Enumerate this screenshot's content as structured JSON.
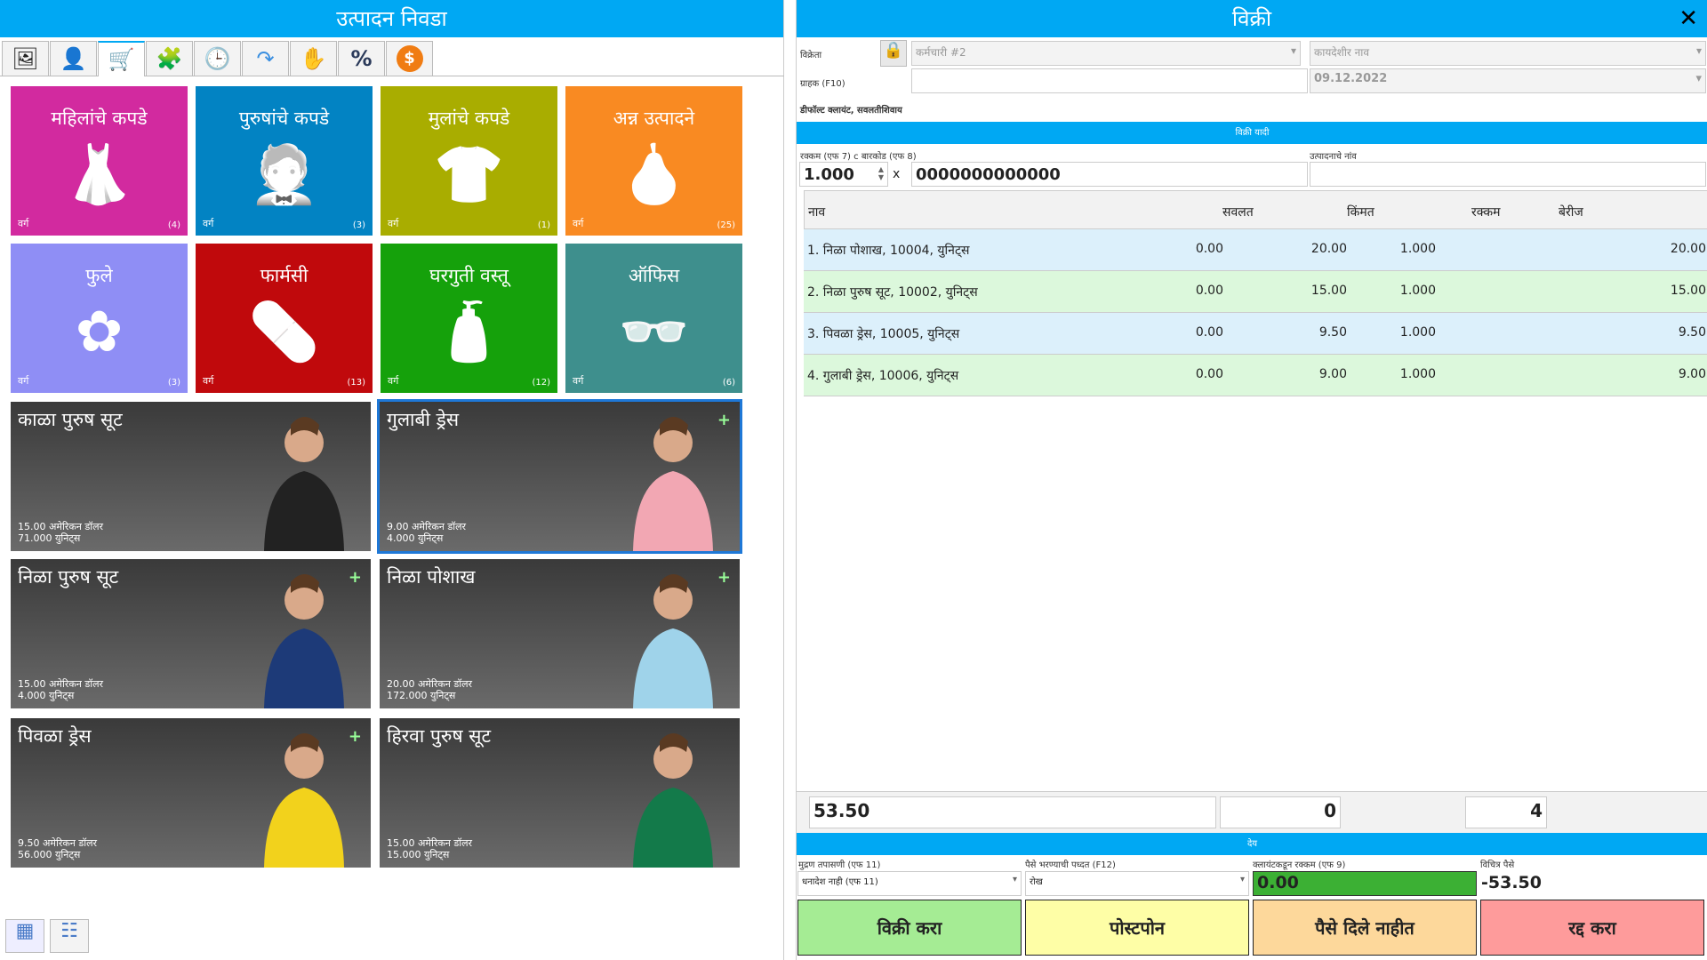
{
  "left": {
    "title": "उत्पादन निवडा",
    "toolbar": [
      {
        "icon": "image-icon",
        "glyph": "🖼"
      },
      {
        "icon": "user-icon",
        "glyph": "👤"
      },
      {
        "icon": "cart-icon",
        "glyph": "🛒"
      },
      {
        "icon": "puzzle-icon",
        "glyph": "🧩"
      },
      {
        "icon": "clock-icon",
        "glyph": "🕒"
      },
      {
        "icon": "redo-arrow-icon",
        "glyph": "↷"
      },
      {
        "icon": "hand-icon",
        "glyph": "✋"
      },
      {
        "icon": "percent-icon",
        "glyph": "%"
      },
      {
        "icon": "dollar-icon",
        "glyph": "$"
      }
    ],
    "categories": [
      {
        "name": "महिलांचे कपडे",
        "label": "वर्ग",
        "count": "(4)",
        "color": "#d22a9f",
        "icon": "dress-icon",
        "glyph": "👗"
      },
      {
        "name": "पुरुषांचे कपडे",
        "label": "वर्ग",
        "count": "(3)",
        "color": "#0283c3",
        "icon": "tuxedo-icon",
        "glyph": "🤵"
      },
      {
        "name": "मुलांचे कपडे",
        "label": "वर्ग",
        "count": "(1)",
        "color": "#a9ad00",
        "icon": "baby-clothes-icon",
        "glyph": "👕"
      },
      {
        "name": "अन्न उत्पादने",
        "label": "वर्ग",
        "count": "(25)",
        "color": "#f98a22",
        "icon": "pear-icon",
        "glyph": "🍐"
      },
      {
        "name": "फुले",
        "label": "वर्ग",
        "count": "(3)",
        "color": "#8f8ef5",
        "icon": "flower-icon",
        "glyph": "✿"
      },
      {
        "name": "फार्मसी",
        "label": "वर्ग",
        "count": "(13)",
        "color": "#c0090c",
        "icon": "pills-icon",
        "glyph": "💊"
      },
      {
        "name": "घरगुती वस्तू",
        "label": "वर्ग",
        "count": "(12)",
        "color": "#15a10b",
        "icon": "cleaning-bottles-icon",
        "glyph": "🧴"
      },
      {
        "name": "ऑफिस",
        "label": "वर्ग",
        "count": "(6)",
        "color": "#3e8f8d",
        "icon": "glasses-icon",
        "glyph": "👓"
      }
    ],
    "products": [
      {
        "name": "काळा पुरुष सूट",
        "price": "15.00 अमेरिकन डॉलर",
        "stock": "71.000 युनिट्स",
        "plus": "",
        "color": "#222"
      },
      {
        "name": "गुलाबी ड्रेस",
        "price": "9.00 अमेरिकन डॉलर",
        "stock": "4.000 युनिट्स",
        "plus": "+",
        "color": "#f2a7b3"
      },
      {
        "name": "निळा पुरुष सूट",
        "price": "15.00 अमेरिकन डॉलर",
        "stock": "4.000 युनिट्स",
        "plus": "+",
        "color": "#1d3a78"
      },
      {
        "name": "निळा पोशाख",
        "price": "20.00 अमेरिकन डॉलर",
        "stock": "172.000 युनिट्स",
        "plus": "+",
        "color": "#9fd3ea"
      },
      {
        "name": "पिवळा ड्रेस",
        "price": "9.50 अमेरिकन डॉलर",
        "stock": "56.000 युनिट्स",
        "plus": "+",
        "color": "#f2d21c"
      },
      {
        "name": "हिरवा पुरुष सूट",
        "price": "15.00 अमेरिकन डॉलर",
        "stock": "15.000 युनिट्स",
        "plus": "",
        "color": "#137a4a"
      }
    ]
  },
  "right": {
    "title": "विक्री",
    "close": "✕",
    "seller_label": "विक्रेता",
    "employee": "कर्मचारी #2",
    "legal_name": "कायदेशीर नाव",
    "customer_label": "ग्राहक (F10)",
    "customer": "",
    "date": "09.12.2022",
    "default_client": "डीफॉल्ट क्लायंट, सवलतीशिवाय",
    "list_header": "विक्री यादी",
    "qty_label": "रक्कम (एफ 7) c बारकोड (एफ 8)",
    "qty": "1.000",
    "times": "x",
    "barcode": "0000000000000",
    "product_name_label": "उत्पादनाचे नांव",
    "product_name": "",
    "columns": [
      "नाव",
      "सवलत",
      "किंमत",
      "रक्कम",
      "बेरीज"
    ],
    "rows": [
      {
        "name": "1. निळा पोशाख, 10004, युनिट्स",
        "discount": "0.00",
        "price": "20.00",
        "qty": "1.000",
        "total": "20.00"
      },
      {
        "name": "2. निळा पुरुष सूट, 10002, युनिट्स",
        "discount": "0.00",
        "price": "15.00",
        "qty": "1.000",
        "total": "15.00"
      },
      {
        "name": "3. पिवळा ड्रेस, 10005, युनिट्स",
        "discount": "0.00",
        "price": "9.50",
        "qty": "1.000",
        "total": "9.50"
      },
      {
        "name": "4. गुलाबी ड्रेस, 10006, युनिट्स",
        "discount": "0.00",
        "price": "9.00",
        "qty": "1.000",
        "total": "9.00"
      }
    ],
    "totals": {
      "sum": "53.50",
      "discount": "0",
      "count": "4"
    },
    "due_header": "देय",
    "print_label": "मुद्रण तपासणी (एफ 11)",
    "print_value": "धनादेश नाही (एफ 11)",
    "payment_label": "पैसे भरण्याची पध्दत (F12)",
    "payment_value": "रोख",
    "client_amount_label": "क्लायंटकडून रक्कम (एफ 9)",
    "client_amount": "0.00",
    "change_label": "विचित्र पैसे",
    "change": "-53.50",
    "buttons": {
      "sell": "विक्री करा",
      "postpone": "पोस्टपोन",
      "unpaid": "पैसे दिले नाहीत",
      "cancel": "रद्द करा"
    }
  }
}
